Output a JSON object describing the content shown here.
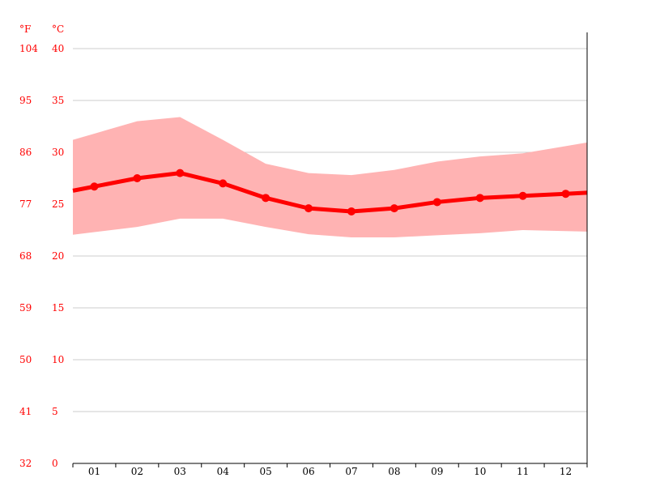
{
  "chart_data": {
    "type": "line",
    "categories": [
      "01",
      "02",
      "03",
      "04",
      "05",
      "06",
      "07",
      "08",
      "09",
      "10",
      "11",
      "12"
    ],
    "y_unit_c": "°C",
    "y_unit_f": "°F",
    "ylim": [
      0,
      40
    ],
    "y_ticks_c": [
      "0",
      "5",
      "10",
      "15",
      "20",
      "25",
      "30",
      "35",
      "40"
    ],
    "y_ticks_f": [
      "32",
      "41",
      "50",
      "59",
      "68",
      "77",
      "86",
      "95",
      "104"
    ],
    "grid": true,
    "series": [
      {
        "values": [
          26.7,
          27.5,
          28.0,
          27.0,
          25.6,
          24.6,
          24.3,
          24.6,
          25.2,
          25.6,
          25.8,
          26.0
        ]
      },
      {
        "values": [
          31.8,
          33.0,
          33.4,
          31.2,
          28.9,
          28.0,
          27.8,
          28.3,
          29.1,
          29.6,
          29.9,
          30.6
        ]
      },
      {
        "values": [
          22.3,
          22.8,
          23.6,
          23.6,
          22.8,
          22.1,
          21.8,
          21.8,
          22.0,
          22.2,
          22.5,
          22.4
        ]
      }
    ],
    "colors": {
      "line": "#ff0000",
      "band": "#ffb3b3",
      "axis": "#000000",
      "grid": "#cccccc",
      "label": "#ff0000"
    }
  }
}
